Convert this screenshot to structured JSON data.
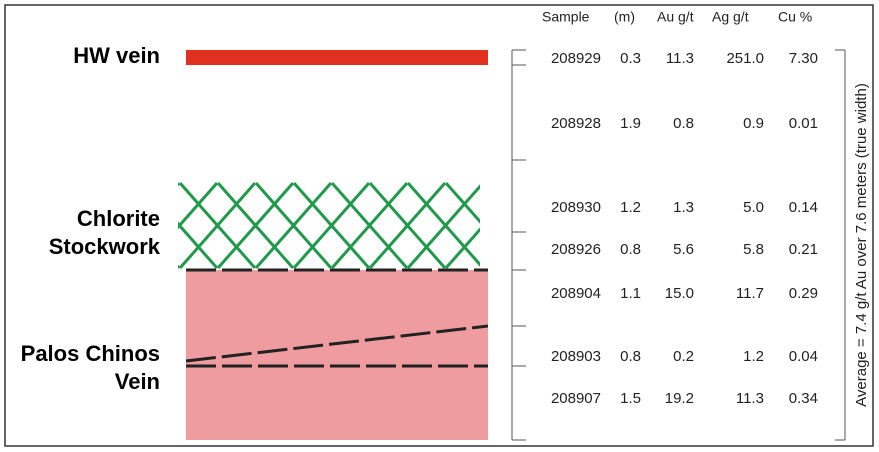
{
  "zones": [
    {
      "lines": [
        "HW vein"
      ]
    },
    {
      "lines": [
        "Chlorite",
        "Stockwork"
      ]
    },
    {
      "lines": [
        "Palos Chinos",
        "Vein"
      ]
    }
  ],
  "table": {
    "header": [
      "Sample",
      "(m)",
      "Au g/t",
      "Ag g/t",
      "Cu %"
    ],
    "rows": [
      [
        "208929",
        "0.3",
        "11.3",
        "251.0",
        "7.30"
      ],
      [
        "208928",
        "1.9",
        "0.8",
        "0.9",
        "0.01"
      ],
      [
        "208930",
        "1.2",
        "1.3",
        "5.0",
        "0.14"
      ],
      [
        "208926",
        "0.8",
        "5.6",
        "5.8",
        "0.21"
      ],
      [
        "208904",
        "1.1",
        "15.0",
        "11.7",
        "0.29"
      ],
      [
        "208903",
        "0.8",
        "0.2",
        "1.2",
        "0.04"
      ],
      [
        "208907",
        "1.5",
        "19.2",
        "11.3",
        "0.34"
      ]
    ]
  },
  "side_note": "Average = 7.4 g/t Au over 7.6 meters (true width)"
}
